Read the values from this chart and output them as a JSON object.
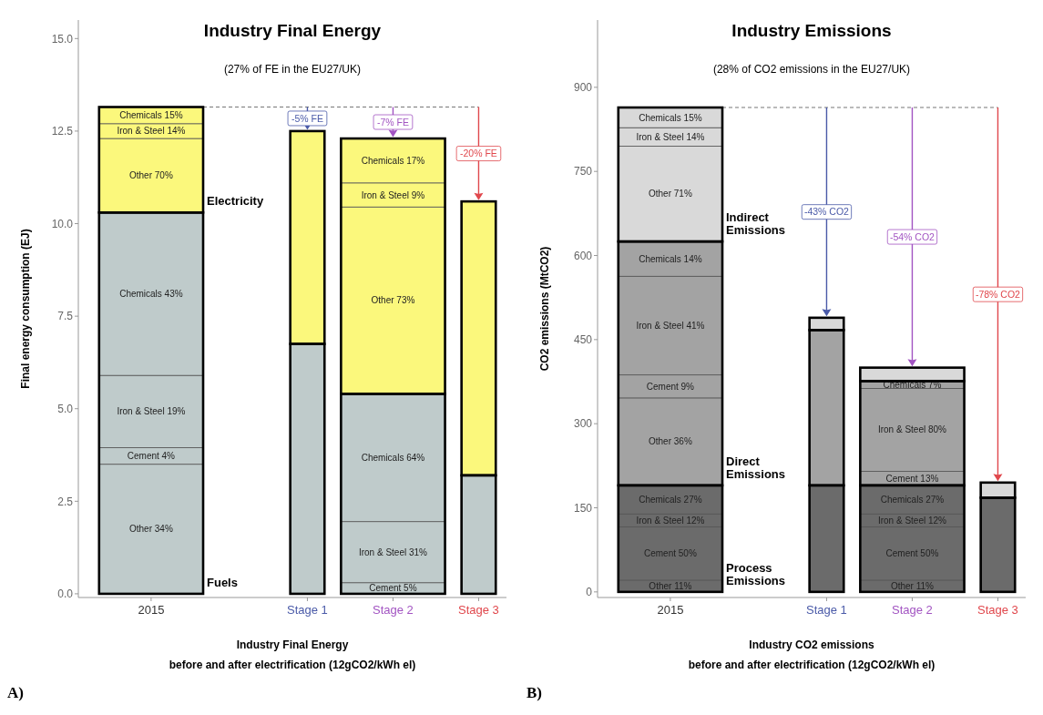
{
  "chart_data": [
    {
      "type": "bar",
      "stacked": true,
      "title": "Industry Final Energy",
      "subtitle": "(27% of FE in the EU27/UK)",
      "ylabel": "Final energy consumption (EJ)",
      "xlabel": "Industry Final Energy\nbefore and after electrification (12gCO2/kWh el)",
      "categories": [
        "2015",
        "Stage 1",
        "Stage 2",
        "Stage 3"
      ],
      "ylim": [
        -0.1,
        15.5
      ],
      "yticks": [
        {
          "value": 0,
          "label": "0.0"
        },
        2.5,
        {
          "value": 5,
          "label": "5.0"
        },
        7.5,
        {
          "value": 10,
          "label": "10.0"
        },
        12.5,
        {
          "value": 15,
          "label": "15.0"
        }
      ],
      "series": [
        {
          "color": "#bfcbcb",
          "values": [
            null,
            6.75,
            null,
            3.2
          ]
        },
        {
          "color": "#bfcbcb",
          "values": [
            3.5,
            null,
            null,
            null
          ],
          "value_labels": [
            "Other 34%",
            null,
            null,
            null
          ]
        },
        {
          "color": "#bfcbcb",
          "values": [
            0.45,
            null,
            0.3,
            null
          ],
          "value_labels": [
            "Cement 4%",
            null,
            "Cement 5%",
            null
          ]
        },
        {
          "color": "#bfcbcb",
          "values": [
            1.95,
            null,
            1.65,
            null
          ],
          "value_labels": [
            "Iron & Steel 19%",
            null,
            "Iron & Steel 31%",
            null
          ]
        },
        {
          "color": "#bfcbcb",
          "values": [
            4.4,
            null,
            3.45,
            null
          ],
          "value_labels": [
            "Chemicals 43%",
            null,
            "Chemicals 64%",
            null
          ]
        },
        {
          "color": "#fbf87c",
          "values": [
            null,
            5.75,
            null,
            7.4
          ]
        },
        {
          "color": "#fbf87c",
          "values": [
            2.0,
            null,
            5.05,
            null
          ],
          "value_labels": [
            "Other 70%",
            null,
            "Other 73%",
            null
          ]
        },
        {
          "color": "#fbf87c",
          "values": [
            0.4,
            null,
            0.65,
            null
          ],
          "value_labels": [
            "Iron & Steel 14%",
            null,
            "Iron & Steel 9%",
            null
          ]
        },
        {
          "color": "#fbf87c",
          "values": [
            0.45,
            null,
            1.2,
            null
          ],
          "value_labels": [
            "Chemicals 15%",
            null,
            "Chemicals 17%",
            null
          ]
        }
      ],
      "ref_lines": [
        {
          "axis": "y",
          "value": 13.15,
          "line_style": "dashed"
        }
      ],
      "annotations": [
        "Electricity",
        "Fuels",
        "-5% FE",
        "-7% FE",
        "-20% FE",
        "A)"
      ]
    },
    {
      "type": "bar",
      "stacked": true,
      "title": "Industry Emissions",
      "subtitle": "(28% of CO2 emissions in the EU27/UK)",
      "ylabel": "CO2 emissions (MtCO2)",
      "xlabel": "Industry CO2 emissions\nbefore and after electrification (12gCO2/kWh el)",
      "categories": [
        "2015",
        "Stage 1",
        "Stage 2",
        "Stage 3"
      ],
      "ylim": [
        -10,
        1020
      ],
      "yticks": [
        0,
        150,
        300,
        450,
        600,
        750,
        900
      ],
      "series": [
        {
          "color": "#6b6b6b",
          "values": [
            null,
            190,
            null,
            168
          ]
        },
        {
          "color": "#6b6b6b",
          "values": [
            21,
            null,
            21,
            null
          ],
          "value_labels": [
            "Other 11%",
            null,
            "Other 11%",
            null
          ]
        },
        {
          "color": "#6b6b6b",
          "values": [
            95,
            null,
            95,
            null
          ],
          "value_labels": [
            "Cement 50%",
            null,
            "Cement 50%",
            null
          ]
        },
        {
          "color": "#6b6b6b",
          "values": [
            23,
            null,
            23,
            null
          ],
          "value_labels": [
            "Iron & Steel 12%",
            null,
            "Iron & Steel 12%",
            null
          ]
        },
        {
          "color": "#6b6b6b",
          "values": [
            51,
            null,
            51,
            null
          ],
          "value_labels": [
            "Chemicals 27%",
            null,
            "Chemicals 27%",
            null
          ]
        },
        {
          "color": "#a3a3a3",
          "values": [
            null,
            277,
            null,
            null
          ]
        },
        {
          "color": "#a3a3a3",
          "values": [
            156,
            null,
            null,
            null
          ],
          "value_labels": [
            "Other 36%",
            null,
            null,
            null
          ]
        },
        {
          "color": "#a3a3a3",
          "values": [
            41,
            null,
            25,
            null
          ],
          "value_labels": [
            "Cement 9%",
            null,
            "Cement 13%",
            null
          ]
        },
        {
          "color": "#a3a3a3",
          "values": [
            176,
            null,
            148,
            null
          ],
          "value_labels": [
            "Iron & Steel 41%",
            null,
            "Iron & Steel 80%",
            null
          ]
        },
        {
          "color": "#a3a3a3",
          "values": [
            62,
            null,
            13,
            null
          ],
          "value_labels": [
            "Chemicals 14%",
            null,
            "Chemicals 7%",
            null
          ]
        },
        {
          "color": "#d9d9d9",
          "values": [
            null,
            22,
            24,
            27
          ]
        },
        {
          "color": "#d9d9d9",
          "values": [
            170,
            null,
            null,
            null
          ],
          "value_labels": [
            "Other 71%",
            null,
            null,
            null
          ]
        },
        {
          "color": "#d9d9d9",
          "values": [
            33,
            null,
            null,
            null
          ],
          "value_labels": [
            "Iron & Steel 14%",
            null,
            null,
            null
          ]
        },
        {
          "color": "#d9d9d9",
          "values": [
            36,
            null,
            null,
            null
          ],
          "value_labels": [
            "Chemicals 15%",
            null,
            null,
            null
          ]
        }
      ],
      "ref_lines": [
        {
          "axis": "y",
          "value": 864,
          "line_style": "dashed"
        }
      ],
      "annotations": [
        "Indirect Emissions",
        "Direct Emissions",
        "Process Emissions",
        "-43% CO2",
        "-54% CO2",
        "-78% CO2",
        "B)"
      ]
    }
  ]
}
